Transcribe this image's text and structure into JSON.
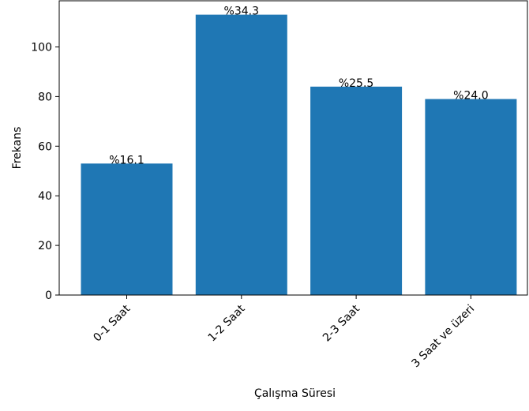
{
  "chart_data": {
    "type": "bar",
    "title": "",
    "xlabel": "Çalışma Süresi",
    "ylabel": "Frekans",
    "categories": [
      "0-1 Saat",
      "1-2 Saat",
      "2-3 Saat",
      "3 Saat ve üzeri"
    ],
    "values": [
      53,
      113,
      84,
      79
    ],
    "bar_labels": [
      "%16.1",
      "%34.3",
      "%25.5",
      "%24.0"
    ],
    "yticks": [
      0,
      20,
      40,
      60,
      80,
      100
    ],
    "ylim": [
      0,
      118.6
    ],
    "bar_color": "#1f77b4",
    "grid": false,
    "legend": "none"
  }
}
